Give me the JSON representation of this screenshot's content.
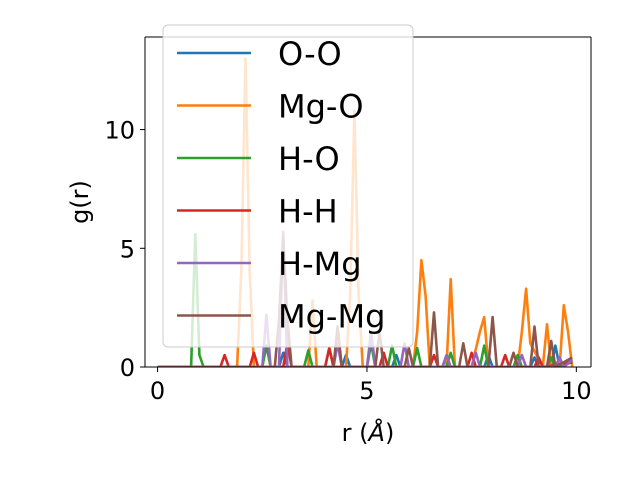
{
  "chart_data": {
    "type": "line",
    "xlabel_text": "r (",
    "xlabel_unit": "Å",
    "xlabel_close": ")",
    "ylabel": "g(r)",
    "xlim": [
      -0.3,
      10.35
    ],
    "ylim": [
      0,
      13.9
    ],
    "xticks": [
      0,
      5,
      10
    ],
    "xtick_labels": [
      "0",
      "5",
      "10"
    ],
    "yticks": [
      0,
      5,
      10
    ],
    "ytick_labels": [
      "0",
      "5",
      "10"
    ],
    "grid": false,
    "legend_placement": "upper-left",
    "series": [
      {
        "name": "O-O",
        "color": "#1f77b4",
        "x": [
          0,
          2.5,
          2.9,
          3.0,
          3.1,
          3.5,
          4.4,
          4.5,
          4.6,
          5.6,
          5.7,
          5.8,
          6.8,
          6.9,
          7.0,
          7.8,
          7.9,
          8.0,
          8.9,
          9.0,
          9.1,
          9.4,
          9.5,
          9.6,
          9.9
        ],
        "y": [
          0,
          0,
          0,
          0.6,
          0,
          0,
          0,
          0.5,
          0,
          0,
          0.5,
          0,
          0,
          0.4,
          0,
          0,
          0.5,
          0,
          0,
          0.4,
          0,
          0,
          0.9,
          0,
          0.3
        ]
      },
      {
        "name": "Mg-O",
        "color": "#ff7f0e",
        "x": [
          0,
          1.9,
          2.0,
          2.1,
          2.2,
          2.3,
          3.6,
          3.7,
          3.8,
          4.5,
          4.6,
          4.7,
          4.8,
          4.9,
          6.1,
          6.2,
          6.3,
          6.4,
          6.5,
          6.9,
          7.0,
          7.1,
          7.5,
          7.7,
          7.8,
          7.9,
          8.6,
          8.7,
          8.8,
          8.9,
          9.2,
          9.3,
          9.4,
          9.6,
          9.7,
          9.8,
          9.9
        ],
        "y": [
          0,
          0,
          4.0,
          13.0,
          4.0,
          0,
          0,
          2.8,
          0,
          0,
          3.0,
          10.8,
          3.0,
          0,
          0,
          1.5,
          4.5,
          3.0,
          0,
          0,
          3.7,
          0,
          0,
          1.5,
          2.1,
          0,
          0,
          1.5,
          3.3,
          1.0,
          0,
          1.8,
          0,
          0,
          2.6,
          1.5,
          0
        ]
      },
      {
        "name": "H-O",
        "color": "#2ca02c",
        "x": [
          0,
          0.8,
          0.9,
          1.0,
          1.1,
          2.5,
          2.6,
          2.7,
          3.5,
          3.6,
          3.7,
          4.0,
          4.1,
          4.2,
          5.0,
          5.1,
          5.2,
          5.5,
          5.6,
          5.7,
          6.1,
          6.2,
          6.3,
          6.9,
          7.0,
          7.1,
          7.7,
          7.8,
          7.9,
          8.5,
          8.6,
          8.7,
          9.3,
          9.4,
          9.5,
          9.9
        ],
        "y": [
          0,
          0,
          5.6,
          0.5,
          0,
          0,
          0.9,
          0,
          0,
          0.7,
          0,
          0,
          0.8,
          0,
          0,
          1.0,
          0,
          0,
          0.9,
          0,
          0,
          0.8,
          0,
          0,
          0.6,
          0,
          0,
          0.9,
          0,
          0,
          0.5,
          0,
          0,
          0.4,
          0,
          0.2
        ]
      },
      {
        "name": "H-H",
        "color": "#d62728",
        "x": [
          0,
          1.5,
          1.6,
          1.7,
          2.2,
          2.3,
          2.4,
          3.0,
          3.1,
          3.2,
          4.0,
          4.1,
          4.2,
          5.3,
          5.4,
          5.5,
          6.5,
          6.6,
          6.7,
          7.4,
          7.5,
          7.6,
          8.2,
          8.3,
          8.4,
          9.0,
          9.1,
          9.2,
          9.9
        ],
        "y": [
          0,
          0,
          0.5,
          0,
          0,
          0.6,
          0,
          0,
          1.0,
          0,
          0,
          0.8,
          0,
          0,
          0.6,
          0,
          0,
          0.5,
          0,
          0,
          0.6,
          0,
          0,
          0.5,
          0,
          0,
          0.4,
          0,
          0.2
        ]
      },
      {
        "name": "H-Mg",
        "color": "#9467bd",
        "x": [
          0,
          2.5,
          2.6,
          2.7,
          2.9,
          3.0,
          3.1,
          4.2,
          4.3,
          4.4,
          5.0,
          5.1,
          5.2,
          5.8,
          5.9,
          6.0,
          6.8,
          6.9,
          7.0,
          7.5,
          7.6,
          7.7,
          8.6,
          8.7,
          8.8,
          9.5,
          9.6,
          9.7,
          9.9
        ],
        "y": [
          0,
          0,
          2.2,
          0,
          0,
          5.7,
          0,
          0,
          1.0,
          0,
          0,
          1.5,
          0,
          0,
          1.0,
          0,
          0,
          0.5,
          0,
          0,
          0.6,
          0,
          0,
          0.5,
          0,
          0,
          0.4,
          0,
          0.3
        ]
      },
      {
        "name": "Mg-Mg",
        "color": "#8c564b",
        "x": [
          0,
          2.8,
          2.9,
          3.0,
          3.1,
          3.2,
          4.2,
          4.3,
          4.4,
          5.2,
          5.3,
          5.4,
          5.9,
          6.0,
          6.1,
          6.5,
          6.6,
          6.7,
          7.2,
          7.3,
          7.4,
          7.9,
          8.0,
          8.1,
          8.4,
          8.5,
          8.6,
          8.9,
          9.0,
          9.1,
          9.3,
          9.4,
          9.5,
          9.9
        ],
        "y": [
          0,
          0,
          2.0,
          5.5,
          2.0,
          0,
          0,
          1.7,
          0,
          0,
          1.5,
          0,
          0,
          0.8,
          0,
          0,
          2.3,
          0,
          0,
          1.0,
          0,
          0,
          2.1,
          0,
          0,
          0.6,
          0,
          0,
          1.7,
          0,
          0,
          1.1,
          0,
          0.4
        ]
      }
    ]
  }
}
